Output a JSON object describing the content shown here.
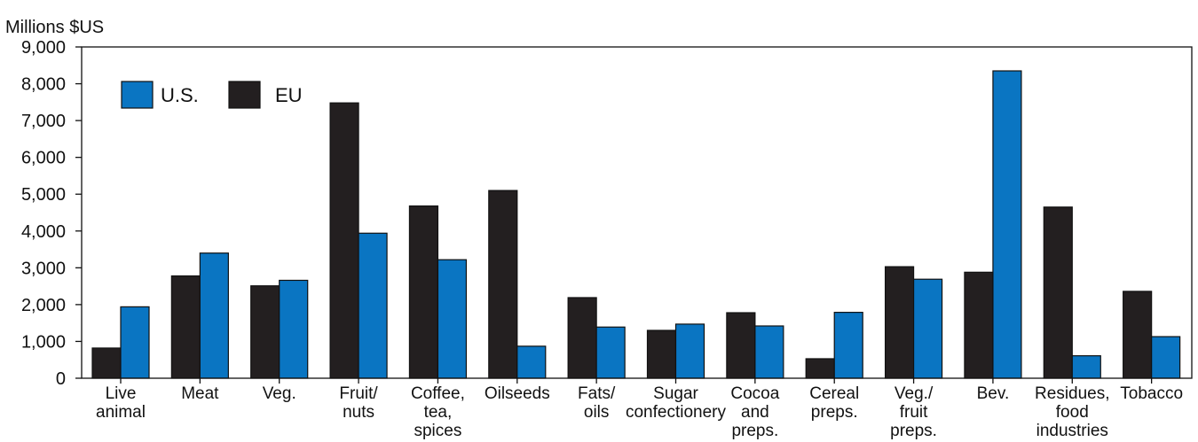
{
  "chart_data": {
    "type": "bar",
    "title": "",
    "ylabel": "Millions $US",
    "xlabel": "",
    "ylim": [
      0,
      9000
    ],
    "yticks": [
      "0",
      "1,000",
      "2,000",
      "3,000",
      "4,000",
      "5,000",
      "6,000",
      "7,000",
      "8,000",
      "9,000"
    ],
    "categories": [
      [
        "Live",
        "animal"
      ],
      [
        "Meat"
      ],
      [
        "Veg."
      ],
      [
        "Fruit/",
        "nuts"
      ],
      [
        "Coffee,",
        "tea,",
        "spices"
      ],
      [
        "Oilseeds"
      ],
      [
        "Fats/",
        "oils"
      ],
      [
        "Sugar",
        "confectionery"
      ],
      [
        "Cocoa",
        "and",
        "preps."
      ],
      [
        "Cereal",
        "preps."
      ],
      [
        "Veg./",
        "fruit",
        "preps."
      ],
      [
        "Bev."
      ],
      [
        "Residues,",
        "food",
        "industries"
      ],
      [
        "Tobacco"
      ]
    ],
    "series": [
      {
        "name": "EU",
        "color": "#231f20",
        "values": [
          820,
          2780,
          2510,
          7480,
          4680,
          5100,
          2190,
          1300,
          1780,
          530,
          3030,
          2880,
          4650,
          2360
        ]
      },
      {
        "name": "U.S.",
        "color": "#0a75c2",
        "values": [
          1940,
          3400,
          2660,
          3940,
          3220,
          870,
          1390,
          1470,
          1420,
          1790,
          2690,
          8350,
          610,
          1130
        ]
      }
    ],
    "legend": {
      "position": "top-left",
      "order": [
        "U.S.",
        "EU"
      ]
    },
    "grid": false
  }
}
